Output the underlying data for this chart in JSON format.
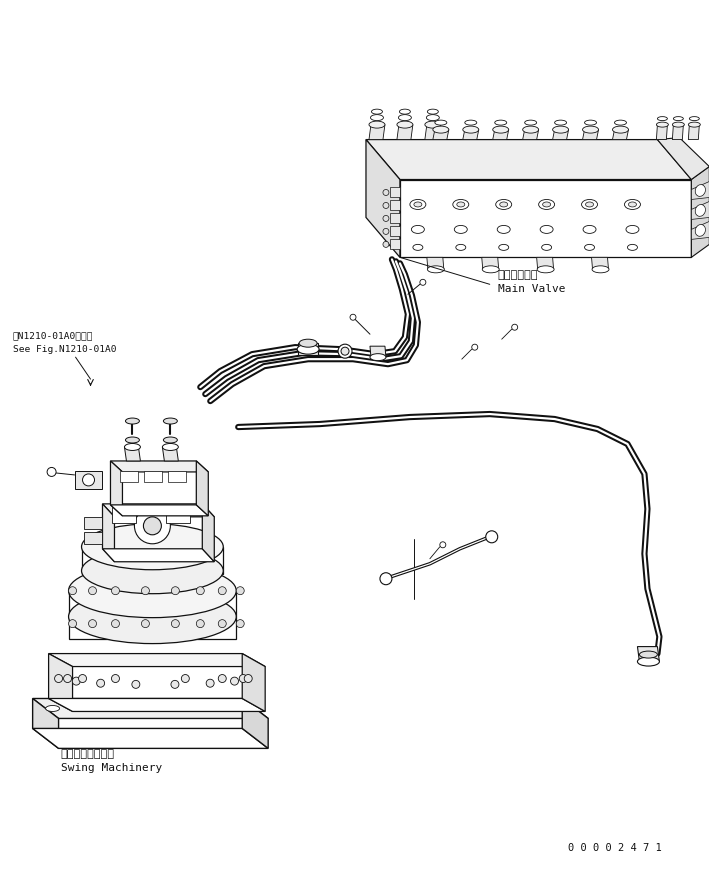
{
  "bg_color": "#ffffff",
  "lc": "#111111",
  "fig_width": 7.1,
  "fig_height": 8.78,
  "dpi": 100,
  "label_main_valve_jp": "メインバルブ",
  "label_main_valve_en": "Main Valve",
  "label_swing_jp": "スイングマシナリ",
  "label_swing_en": "Swing Machinery",
  "label_ref_jp": "第N1210-01A0図参照",
  "label_ref_en": "See Fig.N1210-01A0",
  "part_number": "0 0 0 0 2 4 7 1"
}
